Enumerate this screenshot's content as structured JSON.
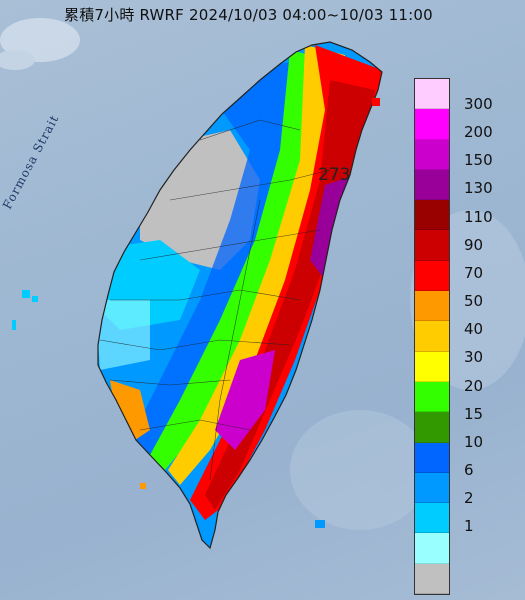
{
  "title": "累積7小時 RWRF 2024/10/03 04:00~10/03 11:00",
  "strait_label": "Formosa Strait",
  "peak_value": "273",
  "legend": [
    {
      "label": "300",
      "color": "#ffccff"
    },
    {
      "label": "200",
      "color": "#ff00ff"
    },
    {
      "label": "150",
      "color": "#cc00cc"
    },
    {
      "label": "130",
      "color": "#990099"
    },
    {
      "label": "110",
      "color": "#990000"
    },
    {
      "label": "90",
      "color": "#cc0000"
    },
    {
      "label": "70",
      "color": "#ff0000"
    },
    {
      "label": "50",
      "color": "#ff9900"
    },
    {
      "label": "40",
      "color": "#ffcc00"
    },
    {
      "label": "30",
      "color": "#ffff00"
    },
    {
      "label": "20",
      "color": "#33ff00"
    },
    {
      "label": "15",
      "color": "#339900"
    },
    {
      "label": "10",
      "color": "#0066ff"
    },
    {
      "label": "6",
      "color": "#0099ff"
    },
    {
      "label": "2",
      "color": "#00ccff"
    },
    {
      "label": "1",
      "color": "#99ffff"
    },
    {
      "label": "",
      "color": "#c0c0c0"
    }
  ]
}
